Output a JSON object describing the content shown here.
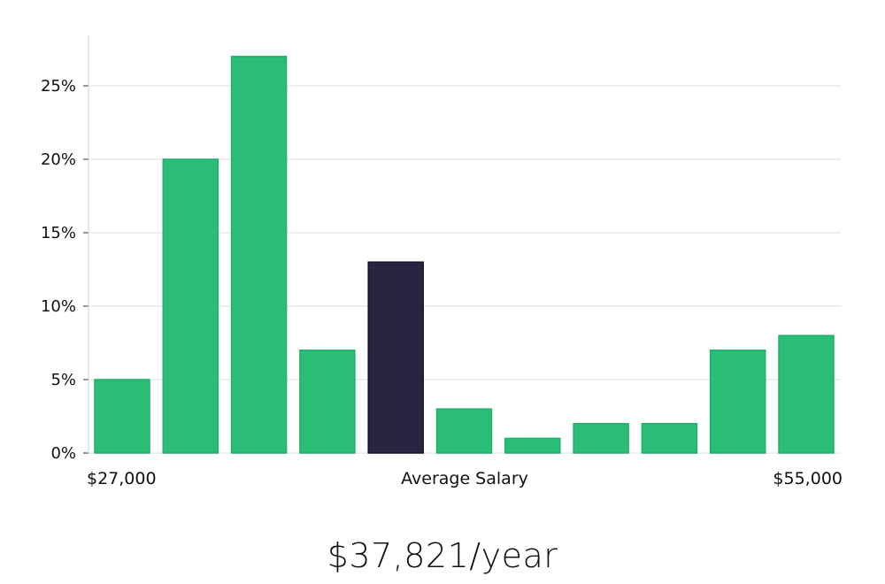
{
  "chart_data": {
    "type": "bar",
    "title": "",
    "xlabel": "Average Salary",
    "ylabel": "",
    "x_min_label": "$27,000",
    "x_max_label": "$55,000",
    "values": [
      5,
      20,
      27,
      7,
      13,
      3,
      1,
      2,
      2,
      7,
      8
    ],
    "highlight_index": 4,
    "yticks": [
      0,
      5,
      10,
      15,
      20,
      25
    ],
    "ytick_labels": [
      "0%",
      "5%",
      "10%",
      "15%",
      "20%",
      "25%"
    ],
    "ylim": [
      0,
      28.5
    ],
    "grid": true
  },
  "colors": {
    "bar": "#2bbd77",
    "bar_stroke": "#1fb06a",
    "highlight": "#27253f",
    "highlight_stroke": "#16142a",
    "grid": "#dcdcdc",
    "axis": "#cfcfcf"
  },
  "salary": {
    "value": "$37,821/year"
  }
}
